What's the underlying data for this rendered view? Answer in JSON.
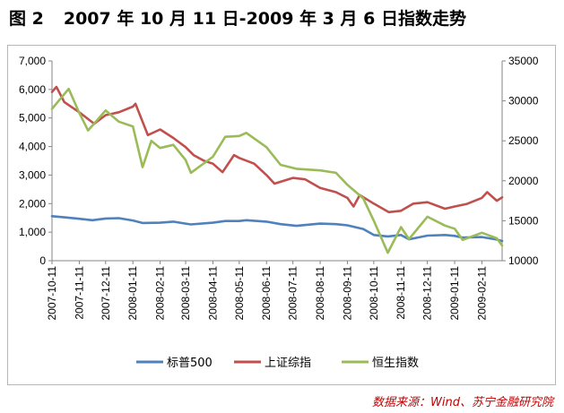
{
  "figure": {
    "number": "图 2",
    "title": "2007 年 10 月 11 日-2009 年 3 月 6 日指数走势"
  },
  "source_note": "数据来源：Wind、苏宁金融研究院",
  "chart_data": {
    "type": "line",
    "x_type": "date",
    "xlim": [
      "2007-10-11",
      "2009-03-06"
    ],
    "x_tick_labels": [
      "2007-10-11",
      "2007-11-11",
      "2007-12-11",
      "2008-01-11",
      "2008-02-11",
      "2008-03-11",
      "2008-04-11",
      "2008-05-11",
      "2008-06-11",
      "2008-07-11",
      "2008-08-11",
      "2008-09-11",
      "2008-10-11",
      "2008-11-11",
      "2008-12-11",
      "2009-01-11",
      "2009-02-11"
    ],
    "y_left": {
      "lim": [
        0,
        7000
      ],
      "ticks": [
        0,
        1000,
        2000,
        3000,
        4000,
        5000,
        6000,
        7000
      ],
      "tick_labels": [
        "0",
        "1,000",
        "2,000",
        "3,000",
        "4,000",
        "5,000",
        "6,000",
        "7,000"
      ]
    },
    "y_right": {
      "lim": [
        10000,
        35000
      ],
      "ticks": [
        10000,
        15000,
        20000,
        25000,
        30000,
        35000
      ],
      "tick_labels": [
        "10000",
        "15000",
        "20000",
        "25000",
        "30000",
        "35000"
      ]
    },
    "grid": false,
    "legend_position": "bottom",
    "series": [
      {
        "name": "标普500",
        "axis": "left",
        "color": "#4f81bd",
        "points": [
          [
            "2007-10-11",
            1560
          ],
          [
            "2007-10-25",
            1520
          ],
          [
            "2007-11-11",
            1470
          ],
          [
            "2007-11-26",
            1420
          ],
          [
            "2007-12-11",
            1480
          ],
          [
            "2007-12-26",
            1490
          ],
          [
            "2008-01-11",
            1410
          ],
          [
            "2008-01-22",
            1320
          ],
          [
            "2008-02-11",
            1330
          ],
          [
            "2008-02-26",
            1370
          ],
          [
            "2008-03-11",
            1300
          ],
          [
            "2008-03-17",
            1270
          ],
          [
            "2008-04-11",
            1330
          ],
          [
            "2008-04-25",
            1390
          ],
          [
            "2008-05-11",
            1390
          ],
          [
            "2008-05-19",
            1420
          ],
          [
            "2008-06-11",
            1370
          ],
          [
            "2008-06-27",
            1280
          ],
          [
            "2008-07-15",
            1220
          ],
          [
            "2008-08-11",
            1300
          ],
          [
            "2008-08-29",
            1280
          ],
          [
            "2008-09-11",
            1240
          ],
          [
            "2008-09-29",
            1110
          ],
          [
            "2008-10-11",
            900
          ],
          [
            "2008-10-27",
            850
          ],
          [
            "2008-11-11",
            900
          ],
          [
            "2008-11-20",
            750
          ],
          [
            "2008-12-11",
            880
          ],
          [
            "2008-12-31",
            900
          ],
          [
            "2009-01-11",
            870
          ],
          [
            "2009-01-20",
            810
          ],
          [
            "2009-02-11",
            830
          ],
          [
            "2009-02-28",
            740
          ],
          [
            "2009-03-06",
            690
          ]
        ]
      },
      {
        "name": "上证综指",
        "axis": "left",
        "color": "#c0504d",
        "points": [
          [
            "2007-10-11",
            5910
          ],
          [
            "2007-10-16",
            6090
          ],
          [
            "2007-10-25",
            5560
          ],
          [
            "2007-11-11",
            5200
          ],
          [
            "2007-11-28",
            4800
          ],
          [
            "2007-12-11",
            5100
          ],
          [
            "2007-12-26",
            5200
          ],
          [
            "2008-01-11",
            5400
          ],
          [
            "2008-01-14",
            5500
          ],
          [
            "2008-01-28",
            4400
          ],
          [
            "2008-02-11",
            4600
          ],
          [
            "2008-02-26",
            4300
          ],
          [
            "2008-03-11",
            3980
          ],
          [
            "2008-03-20",
            3700
          ],
          [
            "2008-04-01",
            3500
          ],
          [
            "2008-04-11",
            3400
          ],
          [
            "2008-04-22",
            3100
          ],
          [
            "2008-05-05",
            3700
          ],
          [
            "2008-05-11",
            3600
          ],
          [
            "2008-05-28",
            3400
          ],
          [
            "2008-06-11",
            3000
          ],
          [
            "2008-06-20",
            2700
          ],
          [
            "2008-07-11",
            2900
          ],
          [
            "2008-07-25",
            2850
          ],
          [
            "2008-08-11",
            2550
          ],
          [
            "2008-08-29",
            2400
          ],
          [
            "2008-09-11",
            2200
          ],
          [
            "2008-09-18",
            1900
          ],
          [
            "2008-09-25",
            2300
          ],
          [
            "2008-10-11",
            2000
          ],
          [
            "2008-10-28",
            1700
          ],
          [
            "2008-11-11",
            1750
          ],
          [
            "2008-11-25",
            2000
          ],
          [
            "2008-12-11",
            2050
          ],
          [
            "2008-12-31",
            1820
          ],
          [
            "2009-01-11",
            1900
          ],
          [
            "2009-01-25",
            1990
          ],
          [
            "2009-02-11",
            2200
          ],
          [
            "2009-02-17",
            2400
          ],
          [
            "2009-02-28",
            2100
          ],
          [
            "2009-03-06",
            2220
          ]
        ]
      },
      {
        "name": "恒生指数",
        "axis": "right",
        "color": "#9bbb59",
        "points": [
          [
            "2007-10-11",
            29000
          ],
          [
            "2007-10-30",
            31500
          ],
          [
            "2007-11-11",
            28500
          ],
          [
            "2007-11-21",
            26300
          ],
          [
            "2007-12-11",
            28800
          ],
          [
            "2007-12-26",
            27400
          ],
          [
            "2008-01-11",
            26800
          ],
          [
            "2008-01-22",
            21700
          ],
          [
            "2008-02-01",
            25000
          ],
          [
            "2008-02-11",
            24100
          ],
          [
            "2008-02-26",
            24500
          ],
          [
            "2008-03-11",
            22600
          ],
          [
            "2008-03-17",
            21000
          ],
          [
            "2008-04-11",
            23000
          ],
          [
            "2008-04-25",
            25500
          ],
          [
            "2008-05-11",
            25600
          ],
          [
            "2008-05-19",
            26000
          ],
          [
            "2008-06-11",
            24200
          ],
          [
            "2008-06-27",
            22000
          ],
          [
            "2008-07-15",
            21500
          ],
          [
            "2008-08-11",
            21300
          ],
          [
            "2008-08-29",
            21000
          ],
          [
            "2008-09-11",
            19500
          ],
          [
            "2008-09-29",
            17800
          ],
          [
            "2008-10-11",
            15000
          ],
          [
            "2008-10-27",
            11000
          ],
          [
            "2008-11-11",
            14200
          ],
          [
            "2008-11-20",
            12700
          ],
          [
            "2008-12-11",
            15500
          ],
          [
            "2008-12-31",
            14400
          ],
          [
            "2009-01-11",
            14000
          ],
          [
            "2009-01-20",
            12600
          ],
          [
            "2009-02-11",
            13500
          ],
          [
            "2009-02-28",
            12800
          ],
          [
            "2009-03-06",
            11900
          ]
        ]
      }
    ]
  }
}
